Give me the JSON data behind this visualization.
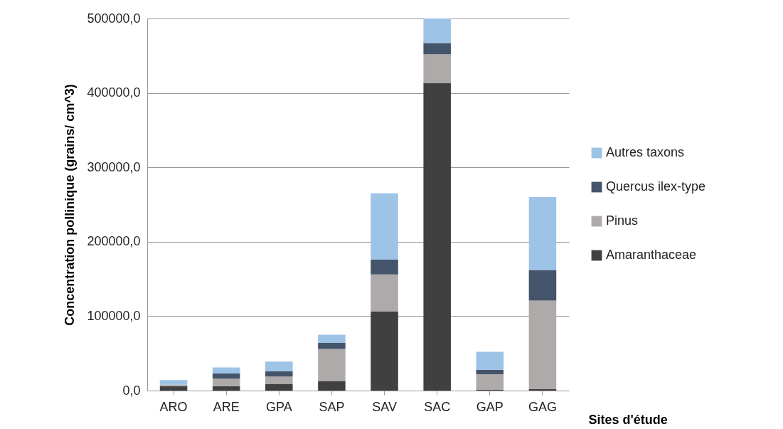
{
  "chart_data": {
    "type": "bar",
    "stacked": true,
    "ylabel": "Concentration pollinique (grains/ cm^3)",
    "xlabel": "Sites d'étude",
    "categories": [
      "ARO",
      "ARE",
      "GPA",
      "SAP",
      "SAV",
      "SAC",
      "GAP",
      "GAG"
    ],
    "series": [
      {
        "name": "Amaranthaceae",
        "color": "#404040",
        "values": [
          6000,
          6000,
          9000,
          13000,
          106000,
          413000,
          1000,
          2000
        ]
      },
      {
        "name": "Pinus",
        "color": "#aeaaaa",
        "values": [
          2000,
          10000,
          10000,
          43000,
          50000,
          39000,
          21000,
          119000
        ]
      },
      {
        "name": "Quercus ilex-type",
        "color": "#44546a",
        "values": [
          null,
          7000,
          7000,
          8000,
          20000,
          15000,
          6000,
          41000
        ]
      },
      {
        "name": "Autres taxons",
        "color": "#9dc3e6",
        "values": [
          6000,
          8000,
          13000,
          11000,
          89000,
          33000,
          24000,
          98000
        ]
      }
    ],
    "ylim": [
      0,
      500000
    ],
    "yticks": [
      {
        "value": 0,
        "label": "0,0"
      },
      {
        "value": 100000,
        "label": "100000,0"
      },
      {
        "value": 200000,
        "label": "200000,0"
      },
      {
        "value": 300000,
        "label": "300000,0"
      },
      {
        "value": 400000,
        "label": "400000,0"
      },
      {
        "value": 500000,
        "label": "500000,0"
      }
    ],
    "grid": "y",
    "legend": "right"
  }
}
